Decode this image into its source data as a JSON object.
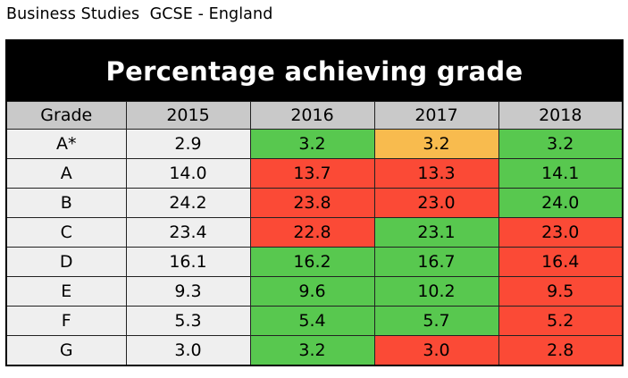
{
  "page": {
    "heading": "Business Studies  GCSE - England"
  },
  "table": {
    "title": "Percentage achieving grade",
    "headers": [
      "Grade",
      "2015",
      "2016",
      "2017",
      "2018"
    ],
    "colors": {
      "neutral": "#efefef",
      "header": "#c9c9c9",
      "up": "#58c84f",
      "down": "#fb4a36",
      "same": "#f8bb4e"
    },
    "rows": [
      {
        "grade": "A*",
        "values": [
          "2.9",
          "3.2",
          "3.2",
          "3.2"
        ],
        "status": [
          "neutral",
          "up",
          "same",
          "up"
        ]
      },
      {
        "grade": "A",
        "values": [
          "14.0",
          "13.7",
          "13.3",
          "14.1"
        ],
        "status": [
          "neutral",
          "down",
          "down",
          "up"
        ]
      },
      {
        "grade": "B",
        "values": [
          "24.2",
          "23.8",
          "23.0",
          "24.0"
        ],
        "status": [
          "neutral",
          "down",
          "down",
          "up"
        ]
      },
      {
        "grade": "C",
        "values": [
          "23.4",
          "22.8",
          "23.1",
          "23.0"
        ],
        "status": [
          "neutral",
          "down",
          "up",
          "down"
        ]
      },
      {
        "grade": "D",
        "values": [
          "16.1",
          "16.2",
          "16.7",
          "16.4"
        ],
        "status": [
          "neutral",
          "up",
          "up",
          "down"
        ]
      },
      {
        "grade": "E",
        "values": [
          "9.3",
          "9.6",
          "10.2",
          "9.5"
        ],
        "status": [
          "neutral",
          "up",
          "up",
          "down"
        ]
      },
      {
        "grade": "F",
        "values": [
          "5.3",
          "5.4",
          "5.7",
          "5.2"
        ],
        "status": [
          "neutral",
          "up",
          "up",
          "down"
        ]
      },
      {
        "grade": "G",
        "values": [
          "3.0",
          "3.2",
          "3.0",
          "2.8"
        ],
        "status": [
          "neutral",
          "up",
          "down",
          "down"
        ]
      }
    ]
  }
}
